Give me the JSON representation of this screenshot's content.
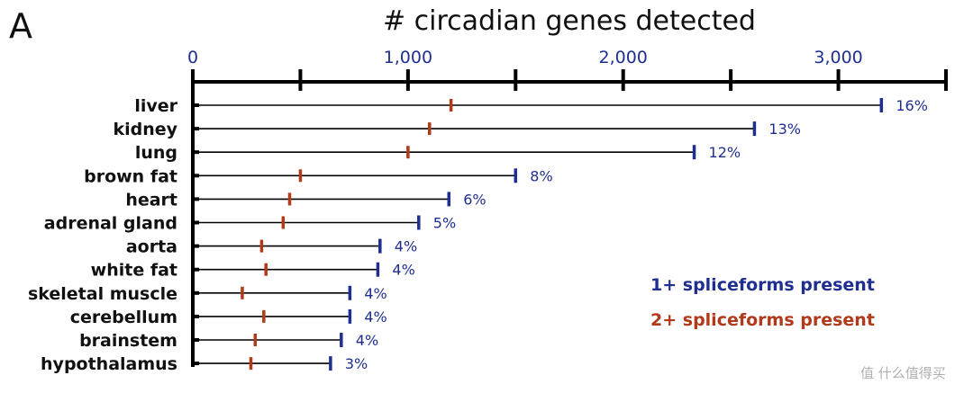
{
  "panel_letter": "A",
  "watermark": "值 什么值得买",
  "colors": {
    "series1": "#1f2f8f",
    "series2": "#b03a1a",
    "axis": "#000000"
  },
  "chart_data": {
    "type": "dot-range",
    "title": "# circadian genes detected",
    "xlim": [
      0,
      3500
    ],
    "xticks": [
      0,
      500,
      1000,
      1500,
      2000,
      2500,
      3000,
      3500
    ],
    "xtick_labels": [
      {
        "value": 0,
        "label": "0"
      },
      {
        "value": 1000,
        "label": "1,000"
      },
      {
        "value": 2000,
        "label": "2,000"
      },
      {
        "value": 3000,
        "label": "3,000"
      }
    ],
    "categories": [
      "liver",
      "kidney",
      "lung",
      "brown fat",
      "heart",
      "adrenal gland",
      "aorta",
      "white fat",
      "skeletal muscle",
      "cerebellum",
      "brainstem",
      "hypothalamus"
    ],
    "series": [
      {
        "name": "1+ spliceforms present",
        "color": "#1f2f8f",
        "values": [
          3200,
          2610,
          2330,
          1500,
          1190,
          1050,
          870,
          860,
          730,
          730,
          690,
          640
        ]
      },
      {
        "name": "2+ spliceforms present",
        "color": "#b03a1a",
        "values": [
          1200,
          1100,
          1000,
          500,
          450,
          420,
          320,
          340,
          230,
          330,
          290,
          270
        ]
      }
    ],
    "percent_labels": [
      "16%",
      "13%",
      "12%",
      "8%",
      "6%",
      "5%",
      "4%",
      "4%",
      "4%",
      "4%",
      "4%",
      "3%"
    ],
    "legend_position": "bottom-right"
  }
}
